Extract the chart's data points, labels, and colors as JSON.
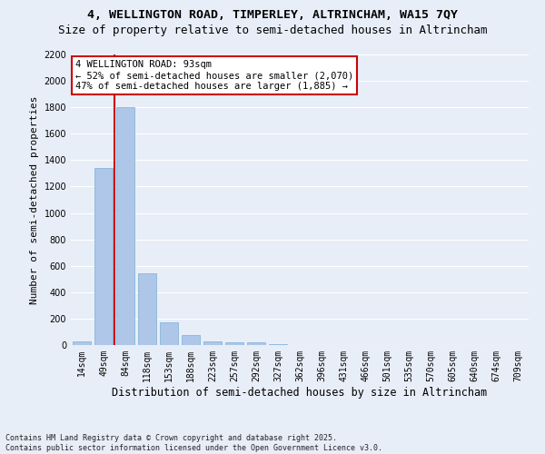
{
  "title_line1": "4, WELLINGTON ROAD, TIMPERLEY, ALTRINCHAM, WA15 7QY",
  "title_line2": "Size of property relative to semi-detached houses in Altrincham",
  "xlabel": "Distribution of semi-detached houses by size in Altrincham",
  "ylabel": "Number of semi-detached properties",
  "annotation_title": "4 WELLINGTON ROAD: 93sqm",
  "annotation_line2": "← 52% of semi-detached houses are smaller (2,070)",
  "annotation_line3": "47% of semi-detached houses are larger (1,885) →",
  "footnote_line1": "Contains HM Land Registry data © Crown copyright and database right 2025.",
  "footnote_line2": "Contains public sector information licensed under the Open Government Licence v3.0.",
  "categories": [
    "14sqm",
    "49sqm",
    "84sqm",
    "118sqm",
    "153sqm",
    "188sqm",
    "223sqm",
    "257sqm",
    "292sqm",
    "327sqm",
    "362sqm",
    "396sqm",
    "431sqm",
    "466sqm",
    "501sqm",
    "535sqm",
    "570sqm",
    "605sqm",
    "640sqm",
    "674sqm",
    "709sqm"
  ],
  "bar_values": [
    30,
    1340,
    1800,
    540,
    175,
    75,
    30,
    22,
    18,
    8,
    0,
    0,
    0,
    0,
    0,
    0,
    0,
    0,
    0,
    0,
    0
  ],
  "bar_color": "#aec6e8",
  "bar_edge_color": "#7aafd4",
  "vline_color": "#cc0000",
  "ylim": [
    0,
    2200
  ],
  "yticks": [
    0,
    200,
    400,
    600,
    800,
    1000,
    1200,
    1400,
    1600,
    1800,
    2000,
    2200
  ],
  "background_color": "#e8eef8",
  "grid_color": "#ffffff",
  "annotation_box_color": "#ffffff",
  "annotation_box_edge": "#cc0000",
  "title1_fontsize": 9.5,
  "title2_fontsize": 9.0,
  "ylabel_fontsize": 8,
  "xlabel_fontsize": 8.5,
  "tick_fontsize": 7,
  "annotation_fontsize": 7.5,
  "footnote_fontsize": 6
}
